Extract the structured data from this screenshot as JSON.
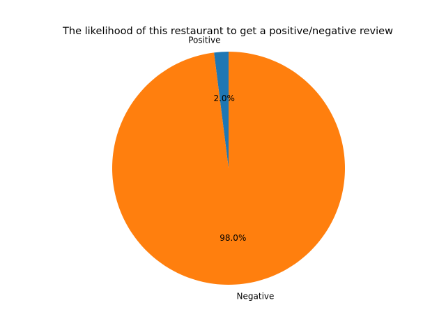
{
  "chart_data": {
    "type": "pie",
    "title": "The likelihood of this restaurant to get a positive/negative review",
    "slices": [
      {
        "label": "Positive",
        "value": 2.0,
        "pct_label": "2.0%",
        "color": "#1f77b4"
      },
      {
        "label": "Negative",
        "value": 98.0,
        "pct_label": "98.0%",
        "color": "#ff7f0e"
      }
    ],
    "start_angle_deg": 90,
    "direction": "counterclockwise",
    "legend": "none"
  }
}
